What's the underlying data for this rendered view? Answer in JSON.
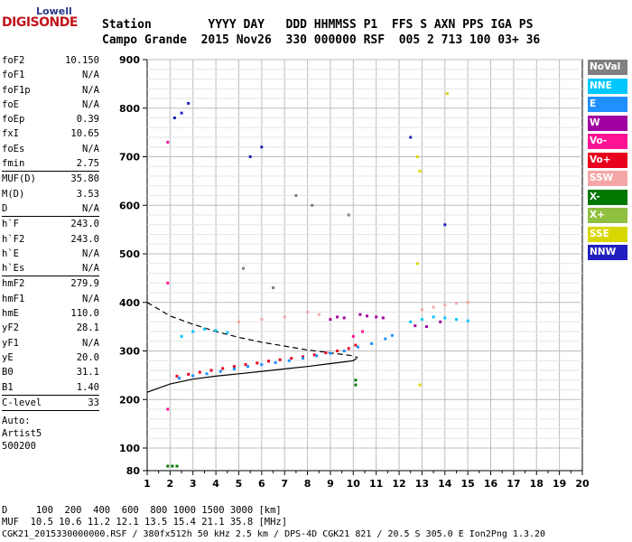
{
  "logo": {
    "line1": "Lowell",
    "line2": "DIGISONDE"
  },
  "header": {
    "line1": "Station        YYYY DAY   DDD HHMMSS P1  FFS S AXN PPS IGA PS",
    "line2": "Campo Grande  2015 Nov26  330 000000 RSF  005 2 713 100 03+ 36"
  },
  "params": [
    {
      "group": [
        {
          "label": "foF2",
          "value": "10.150"
        },
        {
          "label": "foF1",
          "value": "N/A"
        },
        {
          "label": "foF1p",
          "value": "N/A"
        },
        {
          "label": "foE",
          "value": "N/A"
        },
        {
          "label": "foEp",
          "value": "0.39"
        },
        {
          "label": "fxI",
          "value": "10.65"
        },
        {
          "label": "foEs",
          "value": "N/A"
        },
        {
          "label": "fmin",
          "value": "2.75"
        }
      ]
    },
    {
      "group": [
        {
          "label": "MUF(D)",
          "value": "35.80"
        },
        {
          "label": "M(D)",
          "value": "3.53"
        },
        {
          "label": "D",
          "value": "N/A"
        }
      ]
    },
    {
      "group": [
        {
          "label": "h`F",
          "value": "243.0"
        },
        {
          "label": "h`F2",
          "value": "243.0"
        },
        {
          "label": "h`E",
          "value": "N/A"
        },
        {
          "label": "h`Es",
          "value": "N/A"
        }
      ]
    },
    {
      "group": [
        {
          "label": "hmF2",
          "value": "279.9"
        },
        {
          "label": "hmF1",
          "value": "N/A"
        },
        {
          "label": "hmE",
          "value": "110.0"
        },
        {
          "label": "yF2",
          "value": "28.1"
        },
        {
          "label": "yF1",
          "value": "N/A"
        },
        {
          "label": "yE",
          "value": "20.0"
        },
        {
          "label": "B0",
          "value": "31.1"
        },
        {
          "label": "B1",
          "value": "1.40"
        }
      ]
    },
    {
      "group": [
        {
          "label": "C-level",
          "value": "33"
        }
      ]
    }
  ],
  "auto": [
    "Auto:",
    "Artist5",
    "500200"
  ],
  "legend": [
    {
      "label": "NoVal",
      "color": "#808080"
    },
    {
      "label": "NNE",
      "color": "#00c8ff"
    },
    {
      "label": "E",
      "color": "#1e90ff"
    },
    {
      "label": "W",
      "color": "#a000a0"
    },
    {
      "label": "Vo-",
      "color": "#ff1493"
    },
    {
      "label": "Vo+",
      "color": "#e8001c"
    },
    {
      "label": "SSW",
      "color": "#f4a6a6"
    },
    {
      "label": "X-",
      "color": "#007800"
    },
    {
      "label": "X+",
      "color": "#90c040"
    },
    {
      "label": "SSE",
      "color": "#d8d800"
    },
    {
      "label": "NNW",
      "color": "#2020c0"
    }
  ],
  "footer": {
    "line1": "D     100  200  400  600  800 1000 1500 3000 [km]",
    "line2": "MUF  10.5 10.6 11.2 12.1 13.5 15.4 21.1 35.8 [MHz]",
    "line3": "CGK21_2015330000000.RSF / 380fx512h 50 kHz 2.5 km / DPS-4D CGK21 821 / 20.5 S 305.0 E Ion2Png 1.3.20"
  },
  "chart_data": {
    "type": "scatter",
    "xlim": [
      1,
      20
    ],
    "ylim": [
      80,
      900
    ],
    "x_ticks": [
      1,
      2,
      3,
      4,
      5,
      6,
      7,
      8,
      9,
      10,
      11,
      12,
      13,
      14,
      15,
      16,
      17,
      18,
      19,
      20
    ],
    "y_ticks": [
      80,
      100,
      200,
      300,
      400,
      500,
      600,
      700,
      800,
      900
    ],
    "grid": true,
    "legend_position": "right",
    "series": [
      {
        "color": "#e8001c",
        "points": [
          [
            2.3,
            248
          ],
          [
            2.8,
            252
          ],
          [
            3.3,
            256
          ],
          [
            3.8,
            260
          ],
          [
            4.3,
            264
          ],
          [
            4.8,
            268
          ],
          [
            5.3,
            272
          ],
          [
            5.8,
            275
          ],
          [
            6.3,
            279
          ],
          [
            6.8,
            282
          ],
          [
            7.3,
            285
          ],
          [
            7.8,
            288
          ],
          [
            8.3,
            292
          ],
          [
            8.8,
            296
          ],
          [
            9.3,
            300
          ],
          [
            9.8,
            305
          ],
          [
            10.1,
            312
          ]
        ]
      },
      {
        "color": "#1e90ff",
        "points": [
          [
            2.4,
            244
          ],
          [
            3.0,
            249
          ],
          [
            3.6,
            253
          ],
          [
            4.2,
            258
          ],
          [
            4.8,
            263
          ],
          [
            5.4,
            268
          ],
          [
            6.0,
            272
          ],
          [
            6.6,
            276
          ],
          [
            7.2,
            280
          ],
          [
            7.8,
            285
          ],
          [
            8.4,
            290
          ],
          [
            9.0,
            295
          ],
          [
            9.6,
            300
          ],
          [
            10.2,
            308
          ],
          [
            10.8,
            315
          ],
          [
            11.4,
            325
          ],
          [
            11.7,
            332
          ]
        ]
      },
      {
        "color": "#00c8ff",
        "points": [
          [
            2.5,
            330
          ],
          [
            3.0,
            340
          ],
          [
            3.5,
            345
          ],
          [
            4.0,
            342
          ],
          [
            4.5,
            338
          ],
          [
            12.5,
            360
          ],
          [
            13.0,
            365
          ],
          [
            13.5,
            370
          ],
          [
            14.0,
            368
          ],
          [
            14.5,
            365
          ],
          [
            15.0,
            362
          ]
        ]
      },
      {
        "color": "#a000a0",
        "points": [
          [
            9.0,
            365
          ],
          [
            9.3,
            370
          ],
          [
            9.6,
            368
          ],
          [
            10.3,
            375
          ],
          [
            10.6,
            372
          ],
          [
            11.0,
            370
          ],
          [
            11.3,
            368
          ],
          [
            12.7,
            352
          ],
          [
            13.2,
            350
          ],
          [
            13.8,
            360
          ]
        ]
      },
      {
        "color": "#f4a6a6",
        "points": [
          [
            5.0,
            360
          ],
          [
            6.0,
            365
          ],
          [
            7.0,
            370
          ],
          [
            8.0,
            380
          ],
          [
            8.5,
            375
          ],
          [
            13.0,
            385
          ],
          [
            13.5,
            390
          ],
          [
            14.0,
            395
          ],
          [
            14.5,
            398
          ],
          [
            15.0,
            400
          ]
        ]
      },
      {
        "color": "#2020c0",
        "points": [
          [
            2.2,
            780
          ],
          [
            2.5,
            790
          ],
          [
            2.8,
            810
          ],
          [
            5.5,
            700
          ],
          [
            6.0,
            720
          ],
          [
            12.5,
            740
          ],
          [
            14.0,
            560
          ]
        ]
      },
      {
        "color": "#ff1493",
        "points": [
          [
            1.9,
            730
          ],
          [
            1.9,
            440
          ],
          [
            1.9,
            180
          ],
          [
            10.0,
            330
          ],
          [
            10.4,
            340
          ]
        ]
      },
      {
        "color": "#d8d800",
        "points": [
          [
            12.8,
            700
          ],
          [
            12.9,
            670
          ],
          [
            12.8,
            480
          ],
          [
            12.9,
            230
          ],
          [
            14.1,
            830
          ]
        ]
      },
      {
        "color": "#007800",
        "points": [
          [
            1.9,
            84
          ],
          [
            2.1,
            84
          ],
          [
            2.3,
            84
          ],
          [
            10.1,
            240
          ],
          [
            10.1,
            230
          ]
        ]
      },
      {
        "color": "#808080",
        "points": [
          [
            7.5,
            620
          ],
          [
            8.2,
            600
          ],
          [
            9.8,
            580
          ],
          [
            5.2,
            470
          ],
          [
            6.5,
            430
          ]
        ]
      }
    ],
    "model_curves": [
      {
        "style": "dashed",
        "points": [
          [
            1,
            400
          ],
          [
            2,
            372
          ],
          [
            3,
            355
          ],
          [
            4,
            340
          ],
          [
            5,
            328
          ],
          [
            6,
            318
          ],
          [
            7,
            310
          ],
          [
            8,
            302
          ],
          [
            9,
            296
          ],
          [
            10,
            290
          ],
          [
            10.2,
            286
          ]
        ]
      },
      {
        "style": "solid",
        "points": [
          [
            1,
            215
          ],
          [
            2,
            232
          ],
          [
            3,
            242
          ],
          [
            4,
            248
          ],
          [
            5,
            253
          ],
          [
            6,
            258
          ],
          [
            7,
            263
          ],
          [
            8,
            268
          ],
          [
            9,
            274
          ],
          [
            10,
            280
          ],
          [
            10.15,
            285
          ]
        ]
      }
    ]
  }
}
